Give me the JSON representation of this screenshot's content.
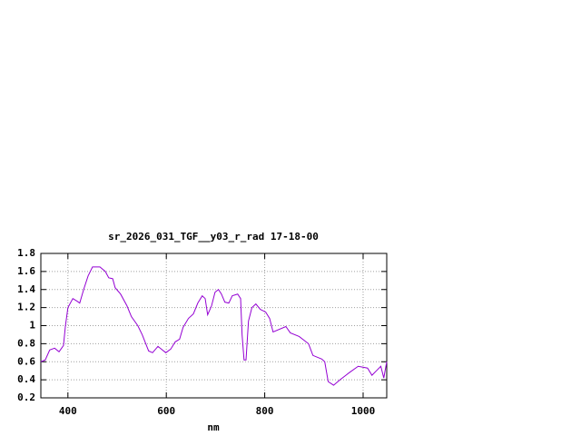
{
  "chart_data": {
    "type": "line",
    "title": "sr_2026_031_TGF__y03_r_rad 17-18-00",
    "xlabel": "nm",
    "color": "#9400d3",
    "grid": true,
    "x": [
      345,
      354,
      363,
      373,
      382,
      391,
      395,
      400,
      410,
      419,
      424,
      432,
      441,
      450,
      465,
      476,
      483,
      491,
      496,
      507,
      520,
      529,
      542,
      551,
      564,
      572,
      583,
      590,
      599,
      609,
      618,
      627,
      634,
      645,
      655,
      664,
      673,
      679,
      684,
      692,
      699,
      706,
      712,
      719,
      727,
      734,
      745,
      751,
      754,
      758,
      762,
      767,
      774,
      782,
      791,
      802,
      810,
      817,
      843,
      852,
      870,
      889,
      898,
      916,
      922,
      929,
      940,
      953,
      972,
      990,
      1009,
      1018,
      1027,
      1036,
      1042,
      1048
    ],
    "values": [
      0.6,
      0.62,
      0.73,
      0.75,
      0.71,
      0.78,
      1.0,
      1.2,
      1.3,
      1.27,
      1.25,
      1.4,
      1.55,
      1.65,
      1.65,
      1.6,
      1.53,
      1.52,
      1.42,
      1.35,
      1.22,
      1.1,
      1.0,
      0.9,
      0.72,
      0.7,
      0.77,
      0.74,
      0.7,
      0.74,
      0.82,
      0.85,
      0.98,
      1.08,
      1.13,
      1.25,
      1.33,
      1.3,
      1.12,
      1.22,
      1.37,
      1.4,
      1.35,
      1.26,
      1.25,
      1.33,
      1.35,
      1.3,
      0.9,
      0.62,
      0.62,
      1.05,
      1.2,
      1.24,
      1.18,
      1.15,
      1.08,
      0.93,
      0.99,
      0.92,
      0.88,
      0.8,
      0.67,
      0.63,
      0.6,
      0.38,
      0.34,
      0.4,
      0.48,
      0.55,
      0.53,
      0.45,
      0.5,
      0.55,
      0.42,
      0.6
    ],
    "xlim": [
      345,
      1048
    ],
    "xticks": [
      400,
      600,
      800,
      1000
    ],
    "ylim": [
      0.2,
      1.8
    ],
    "yticks": [
      0.2,
      0.4,
      0.6,
      0.8,
      1,
      1.2,
      1.4,
      1.6,
      1.8
    ]
  }
}
